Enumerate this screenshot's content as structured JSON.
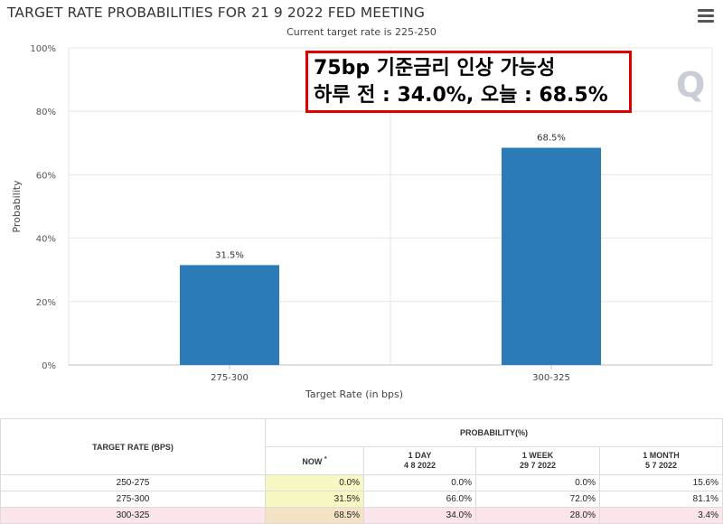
{
  "header": {
    "title": "TARGET RATE PROBABILITIES FOR 21 9 2022 FED MEETING",
    "subtitle": "Current target rate is 225-250"
  },
  "overlay": {
    "line1": "75bp 기준금리 인상 가능성",
    "line2": "하루 전 : 34.0%, 오늘 : 68.5%"
  },
  "logo": {
    "text": "Q"
  },
  "chart_data": {
    "type": "bar",
    "title": "TARGET RATE PROBABILITIES FOR 21 9 2022 FED MEETING",
    "subtitle": "Current target rate is 225-250",
    "categories": [
      "275-300",
      "300-325"
    ],
    "values": [
      31.5,
      68.5
    ],
    "data_labels": [
      "31.5%",
      "68.5%"
    ],
    "xlabel": "Target Rate (in bps)",
    "ylabel": "Probability",
    "ylim": [
      0,
      100
    ],
    "yticks": [
      0,
      20,
      40,
      60,
      80,
      100
    ],
    "ytick_labels": [
      "0%",
      "20%",
      "40%",
      "60%",
      "80%",
      "100%"
    ],
    "grid": true,
    "bar_color": "#2b7bb9"
  },
  "table": {
    "rate_header": "TARGET RATE (BPS)",
    "prob_header": "PROBABILITY(%)",
    "columns": [
      {
        "label": "NOW",
        "star": "*",
        "date": ""
      },
      {
        "label": "1 DAY",
        "date": "4 8 2022"
      },
      {
        "label": "1 WEEK",
        "date": "29 7 2022"
      },
      {
        "label": "1 MONTH",
        "date": "5 7 2022"
      }
    ],
    "rows": [
      {
        "rate": "250-275",
        "now": "0.0%",
        "day": "0.0%",
        "week": "0.0%",
        "month": "15.6%"
      },
      {
        "rate": "275-300",
        "now": "31.5%",
        "day": "66.0%",
        "week": "72.0%",
        "month": "81.1%"
      },
      {
        "rate": "300-325",
        "now": "68.5%",
        "day": "34.0%",
        "week": "28.0%",
        "month": "3.4%"
      }
    ]
  }
}
